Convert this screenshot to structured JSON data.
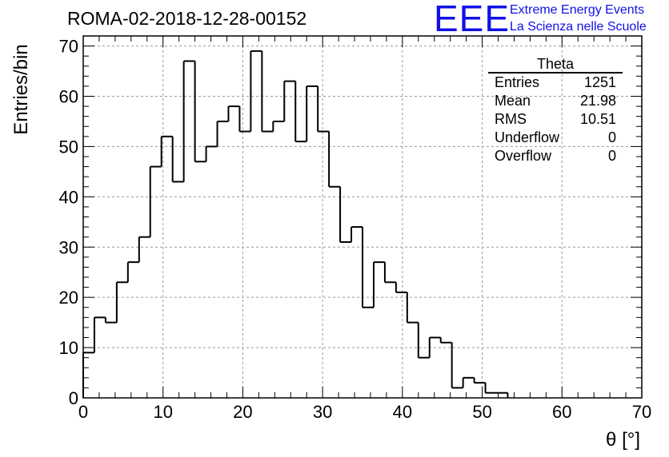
{
  "chart_title": "ROMA-02-2018-12-28-00152",
  "logo": {
    "mark": "EEE",
    "line1": "Extreme Energy Events",
    "line2": "La Scienza nelle Scuole",
    "color": "#1010e8"
  },
  "stats": {
    "title": "Theta",
    "rows": [
      {
        "label": "Entries",
        "value": "1251"
      },
      {
        "label": "Mean",
        "value": "21.98"
      },
      {
        "label": "RMS",
        "value": "10.51"
      },
      {
        "label": "Underflow",
        "value": "0"
      },
      {
        "label": "Overflow",
        "value": "0"
      }
    ]
  },
  "chart_data": {
    "type": "bar",
    "style": "step-histogram",
    "xlabel": "θ [°]",
    "ylabel": "Entries/bin",
    "xlim": [
      0,
      70
    ],
    "ylim": [
      0,
      72
    ],
    "grid": true,
    "legend": "top-right",
    "xticks": [
      0,
      10,
      20,
      30,
      40,
      50,
      60,
      70
    ],
    "yticks": [
      0,
      10,
      20,
      30,
      40,
      50,
      60,
      70
    ],
    "bin_edges": [
      0.0,
      1.4,
      2.8,
      4.2,
      5.6,
      7.0,
      8.4,
      9.8,
      11.2,
      12.6,
      14.0,
      15.4,
      16.8,
      18.2,
      19.6,
      21.0,
      22.4,
      23.8,
      25.2,
      26.6,
      28.0,
      29.4,
      30.8,
      32.2,
      33.6,
      35.0,
      36.4,
      37.8,
      39.2,
      40.6,
      42.0,
      43.4,
      44.8,
      46.2,
      47.6,
      49.0,
      50.4,
      51.8,
      53.2
    ],
    "values": [
      9,
      16,
      15,
      23,
      27,
      32,
      46,
      52,
      43,
      67,
      47,
      50,
      55,
      58,
      53,
      69,
      53,
      55,
      63,
      51,
      62,
      53,
      42,
      31,
      34,
      18,
      27,
      23,
      21,
      15,
      8,
      12,
      11,
      2,
      4,
      3,
      1,
      1
    ]
  }
}
